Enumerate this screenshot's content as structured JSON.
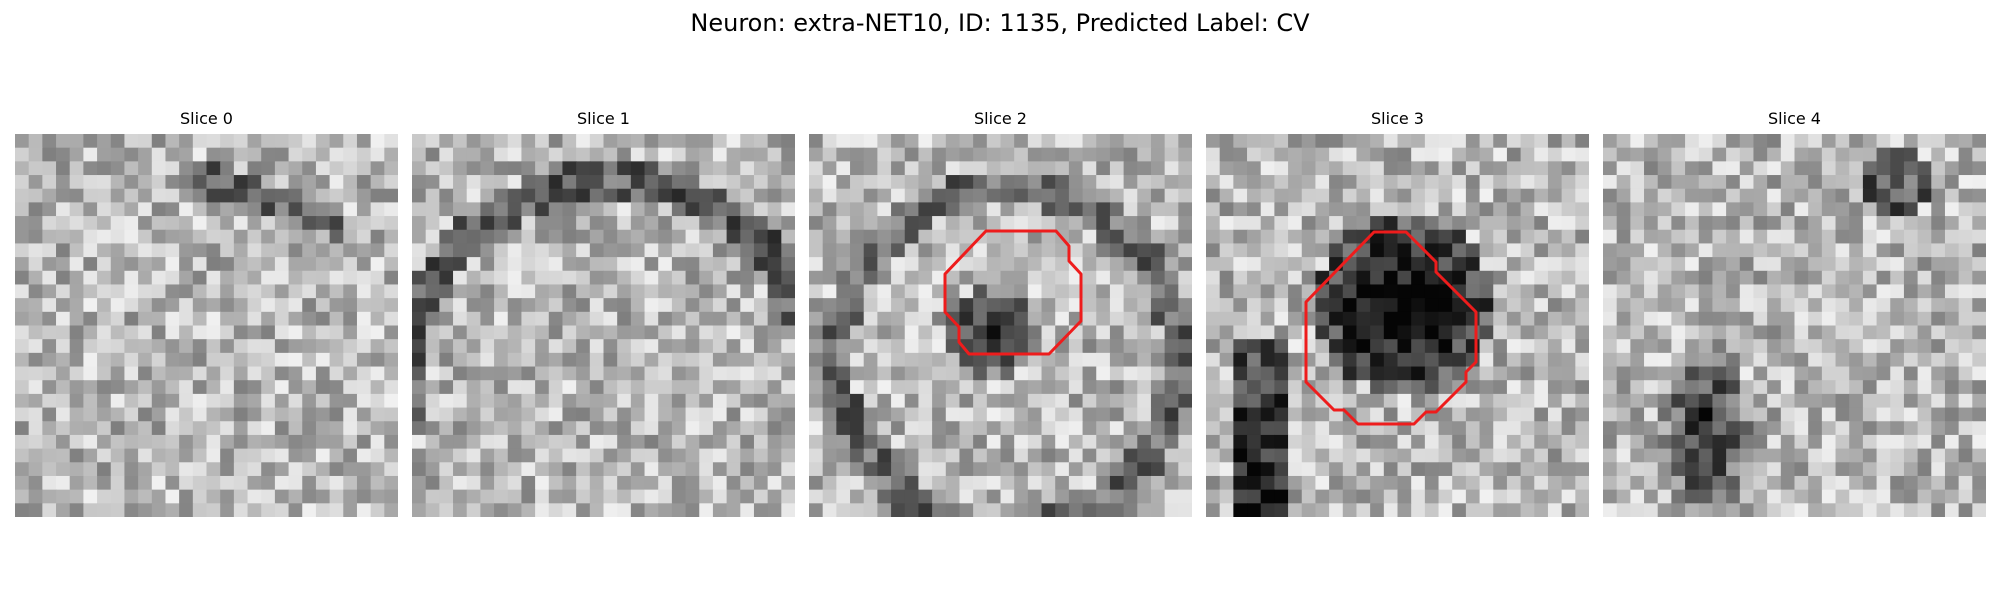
{
  "figure": {
    "title": "Neuron: extra-NET10, ID: 1135, Predicted Label: CV"
  },
  "panels": [
    {
      "label": "Slice 0",
      "has_contour": false
    },
    {
      "label": "Slice 1",
      "has_contour": false
    },
    {
      "label": "Slice 2",
      "has_contour": true
    },
    {
      "label": "Slice 3",
      "has_contour": true
    },
    {
      "label": "Slice 4",
      "has_contour": false
    }
  ],
  "colors": {
    "contour": "#ee1c1c",
    "colormap": "grayscale"
  }
}
